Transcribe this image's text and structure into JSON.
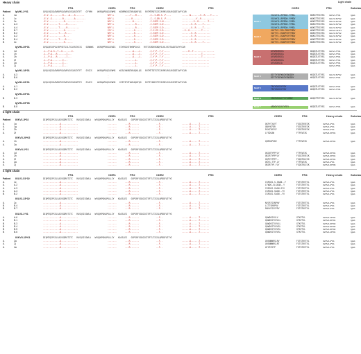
{
  "sections": [
    {
      "title": "Heavy chain",
      "light_header": "Light chain",
      "columns": [
        "FR1",
        "CDR1",
        "FR2",
        "CDR2",
        "FR3",
        "CDR3",
        "FR4",
        "Subclass"
      ],
      "patient_label": "Patient",
      "groups": [
        {
          "gene": "IgVH1-2*01",
          "germline": "QVQLVQSGAEVKKPGASVKVSCKASGYTFT   GYYMH    WVRQAPGQGLEWMG   WINPNSGGTNYAQKFQG   RVTMTRDTSISTAYMELSRLRSDDTAVYYCAR",
          "rows": [
            {
              "p": "A",
              "c": "1a",
              "fr1": "-E-V--S--------R----A---S-------",
              "cdr1": "NFY-L",
              "fr2": "----T---M----",
              "cdr2": "-I--S-DR-S--P----",
              "fr3": "------N-------V--R----T-----",
              "light": "IGKV1-5*01",
              "sub": "IgG1"
            },
            {
              "p": "A",
              "c": "1c",
              "fr1": "-E-V--S--------R--------A--------",
              "cdr1": "NFY-L",
              "fr2": "-----R-------",
              "cdr2": "-I--S-DR-S--P----",
              "fr3": "-----------V--R----------",
              "light": "IGLV1-51*02",
              "sub": "IgG1"
            },
            {
              "p": "A",
              "c": "3c",
              "fr1": "-E-V------------R--------------",
              "cdr1": "NFY-L",
              "fr2": "------R------",
              "cdr2": "-I-SSEP-S-N-----",
              "fr3": "---------V--R-------T----",
              "light": "IGLV1-51*02",
              "sub": "IgG1"
            },
            {
              "p": "A",
              "c": "A.3",
              "fr1": "-E-V--------T-----R-------",
              "cdr1": "NFY-L",
              "fr2": "--------R----",
              "cdr2": "-I-SSEP-S-D-----",
              "fr3": "-------V--R-----T-----",
              "light": "IGLV1-51*02",
              "sub": "IgG1"
            },
            {
              "p": "A",
              "c": "A.4",
              "fr1": "-E-V--------T-----R---------",
              "cdr1": "NFY-L",
              "fr2": "--------R----",
              "cdr2": "-I-SSEP-S-D-----",
              "fr3": "-------V--R-----T-----",
              "light": "IGLV1-51*02",
              "sub": "IgG1"
            },
            {
              "p": "B",
              "c": "B.7",
              "fr1": "-E-V------------R--------",
              "cdr1": "SFY-L",
              "fr2": "-------R-----",
              "cdr2": "-I-S-EP-S-D-----",
              "fr3": "--V--R---------T-----",
              "light": "IGKV3-11*01",
              "sub": "IgG1"
            },
            {
              "p": "B",
              "c": "B.2",
              "fr1": "-E-V--------T----R----",
              "cdr1": "NFY-L",
              "fr2": "-------R-----",
              "cdr2": "-I-SSEP-S-D-----",
              "fr3": "-------V--R-----------",
              "light": "IGLV1-51*02",
              "sub": "IgG1"
            },
            {
              "p": "A",
              "c": "A.2",
              "fr1": "-E-V------------R---",
              "cdr1": "NFY-L",
              "fr2": "-------R-----",
              "cdr2": "-I-SSEP-S-D-----",
              "fr3": "-------V--R-----------",
              "light": "IGLV1-51*02",
              "sub": "IgG1"
            },
            {
              "p": "B",
              "c": "B.4",
              "fr1": "-E-V--------T----R----",
              "cdr1": "NFY-L",
              "fr2": "-------R-----",
              "cdr2": "-I-SSEP-S-D-----",
              "fr3": "-------V--R-----------",
              "light": "IGLV1-51*02",
              "sub": "IgG1"
            },
            {
              "p": "B",
              "c": "2c",
              "fr1": "-E-V------------R------",
              "cdr1": "NFY-L",
              "fr2": "-------R-----",
              "cdr2": "-I-SSEP-S-D-----",
              "fr3": "-------V--R-----T-----",
              "light": "IGLV1-51*02",
              "sub": "IgG1"
            }
          ],
          "motifs": [
            {
              "label": "Motif 1",
              "color": "#8ec8e0",
              "cdr3": [
                "VGLWYILLRPEDW-YYMDL",
                "VGLWYILLRPEDW-YYMDV",
                "VGLWYILLRPEDW-YYMDL",
                "VGLWYILLRPEDW-YYMDL",
                "VGLWYILLRPEDW-YYMDL"
              ],
              "fr4": [
                "WGKGTTVIVSS",
                "WGKGTTVIVSS",
                "WGKGTTVIVSS",
                "WGKGTTVIVSS",
                "WGKGTTVIVSS"
              ]
            },
            {
              "label": "Motif 2",
              "color": "#f0a860",
              "cdr3": [
                "VAFTYS-CSD-PRRFTMDV",
                "VAFTYS-CSDDPCRFTMDV",
                "VAFTYS-CSDDPCRFTMDV",
                "VAFTYS-CSDDPCRFTMDV",
                "VAFTYS-CSDDPCRFTMDV"
              ],
              "fr4": [
                "WGKGTTVIVSS",
                "WGKGTTVIVSS",
                "WGKGTTVIVSS",
                "WGKGTTVIVSS",
                "WGKGTTVIVSS"
              ]
            }
          ]
        },
        {
          "gene": "IgVH4-39*01",
          "germline": "QVQLQESGPGLVKPSETLSLTCAVSGYSIS   SGNWWS   WIRQPPGKGLEWIG   EIYHSGSTNYNPSLKS   RVTISVDKSKNQFSLKLSSVTAADTAVYYCAR",
          "rows": [
            {
              "p": "A",
              "c": "1d",
              "fr1": "-L--P-A-S--T--G-------I-",
              "cdr1": "",
              "fr2": "------A----L-",
              "cdr2": "-I-Y-P--T-Y-----",
              "fr3": "-----R--T----------------",
              "light": "IGKV1-5*01",
              "sub": "IgG1"
            },
            {
              "p": "A",
              "c": "1h",
              "fr1": "-L--P-A---R-------I---",
              "cdr1": "",
              "fr2": "------A----L-",
              "cdr2": "-I-Y-P--T-Y-----",
              "fr3": "---------------T----------",
              "light": "IGKV1-5*01",
              "sub": "IgG1"
            },
            {
              "p": "A",
              "c": "2h",
              "fr1": "-L--P-A---R-------I---",
              "cdr1": "",
              "fr2": "------A----L-",
              "cdr2": "-I-Y-P--T-Y-----",
              "fr3": "---------------T----------",
              "light": "IGKV1-5*01",
              "sub": "IgG1"
            },
            {
              "p": "A",
              "c": "2f",
              "fr1": "-L--P-A--------I---",
              "cdr1": "",
              "fr2": "--------L-",
              "cdr2": "-I-Y-P--T-Y-----",
              "fr3": "---------------------",
              "light": "IGKV1-5*01",
              "sub": "IgG1"
            },
            {
              "p": "A",
              "c": "2a",
              "fr1": "-L--P-A--------I---",
              "cdr1": "",
              "fr2": "--------L-",
              "cdr2": "-I-Y-P--T-Y-----",
              "fr3": "---------------------",
              "light": "IGKV1-5*01",
              "sub": "IgG1"
            },
            {
              "p": "A",
              "c": "2j",
              "fr1": "-L--P-A--------I---",
              "cdr1": "",
              "fr2": "--------L-",
              "cdr2": "-I-Y-P--T-Y-----",
              "fr3": "---------------------",
              "light": "IGKV1-5*01",
              "sub": "IgG1"
            }
          ],
          "motifs": [
            {
              "label": "Motif 3",
              "color": "#c87070",
              "cdr3": [
                "AYARSGRGCA",
                "AYARSGRGCA",
                "AYARSGRGCA",
                "AYARSGRGCA",
                "AYASGRGCA"
              ],
              "fr4": [
                "WGQGTLVTVSS",
                "WGQGTLVTVSS",
                "WGQGTLVTVSS",
                "WGQGTLVTVSS",
                "WGQGTLVTVSS"
              ]
            }
          ]
        },
        {
          "gene": "IgVH1-18*01",
          "germline": "QVQLVQSGAEVKKPGASVKVSCKASGYTFT   SYGIS    WVRQAPGQGLEWMG   WISAYNGNTNYAQKLQG   RVTMTTDTSTSTAYMELRSLRSDDTAVYYCAR",
          "rows": [
            {
              "p": "A",
              "c": "A.3",
              "fr1": "",
              "cdr1": "-",
              "fr2": "",
              "cdr2": "",
              "fr3": "",
              "light": "IGLV1-51*02",
              "sub": "IgG1"
            },
            {
              "p": "B",
              "c": "B.6",
              "fr1": "",
              "cdr1": "-",
              "fr2": "",
              "cdr2": "",
              "fr3": "",
              "light": "IGKV1-5*01",
              "sub": "IgG1"
            }
          ],
          "motifs": [
            {
              "label": "Motif 4",
              "color": "#b0b0b0",
              "cdr3": [
                "DIFTYYDFWSGYSNGDDY",
                "DIFTYYDFWSGYSNGDDY"
              ],
              "fr4": [
                "WGQGTLVTVSS",
                "WGQGTLVTVSS"
              ]
            }
          ]
        },
        {
          "gene": "IgVH1-69*01",
          "germline": "QVQLVQSGAEVKKPGSSVKVSCKASGGTFS   SYAIS    WVRQAPGQGLEWMG   GIIPIFGTANYAQKFQG   RVTITADESTSTAYMELSSLRSEDTAVYYCAR",
          "rows": [
            {
              "p": "A",
              "c": "A.1",
              "fr1": "",
              "cdr1": "",
              "fr2": "",
              "cdr2": "",
              "fr3": "",
              "light": "IGKV1-5*01",
              "sub": "IgG1"
            },
            {
              "p": "B",
              "c": "B.2",
              "fr1": "",
              "cdr1": "",
              "fr2": "",
              "cdr2": "",
              "fr3": "",
              "light": "IGKV1-5*01",
              "sub": "IgG1"
            }
          ],
          "motifs": [
            {
              "label": "Motif 5",
              "color": "#5878c8",
              "cdr3": [
                "TRYYGGSSYFDY",
                "TRYYGGSSYFDY"
              ],
              "fr4": [
                "WGQGTLVTVSS",
                "WGQGTLVTVSS"
              ]
            }
          ]
        },
        {
          "gene": "IgVH1-69*01",
          "germline": "",
          "rows": [
            {
              "p": "B",
              "c": "B.3",
              "fr1": "",
              "cdr1": "",
              "fr2": "",
              "cdr2": "",
              "fr3": "",
              "light": "IGLV1-51*02",
              "sub": "IgG1"
            }
          ],
          "motifs": [
            {
              "label": "Motif 6",
              "color": "#5aa85a",
              "cdr3": [
                "VRERYRGAYYYYYGMDV"
              ],
              "fr4": [
                "WGQGTTVTVSS"
              ]
            }
          ]
        },
        {
          "gene": "IgVH1-69*06",
          "germline": "",
          "rows": [
            {
              "p": "B",
              "c": "B.8",
              "fr1": "",
              "cdr1": "",
              "fr2": "",
              "cdr2": "",
              "fr3": "",
              "light": "IGKV1-5*01",
              "sub": "IgG1"
            }
          ],
          "motifs": [
            {
              "label": "Motif 7",
              "color": "#98d070",
              "cdr3": [
                "ARDGYYGSSYYFDY"
              ],
              "fr4": [
                "WGQGTLVTVSS"
              ]
            }
          ]
        }
      ]
    },
    {
      "title": "κ light chain",
      "columns": [
        "FR1",
        "CDR1",
        "FR2",
        "CDR2",
        "FR3",
        "CDR3",
        "FR4",
        "Heavy chain",
        "Subclass"
      ],
      "groups": [
        {
          "gene": "IGKV1-5*02",
          "rows": [
            {
              "p": "A",
              "c": "1a"
            },
            {
              "p": "A",
              "c": "1g"
            },
            {
              "p": "A",
              "c": "2h"
            },
            {
              "p": "A",
              "c": "2f"
            }
          ],
          "cdr3": [
            "QKFYCYAYT",
            "QNYHCFDR",
            "RSHCYRFSY",
            "LFSDSAW"
          ],
          "fr4": [
            "FGGGTKVEIK",
            "FGGGTKVEIK",
            "FGGGTKVEIK",
            "FTFKVEIK"
          ],
          "heavy": [
            "IGHV1-2*01",
            "IGHV1-2*01",
            "IGHV1-2*01",
            "IGHV4-39*01"
          ],
          "sub": [
            "IgG1",
            "IgG1",
            "IgG1",
            "IgG1"
          ]
        },
        {
          "gene": "IGKV3-20*02",
          "rows": [
            {
              "p": "A",
              "c": "1h"
            },
            {
              "p": "A",
              "c": "2a"
            }
          ],
          "cdr3": [
            "QHRGSPGKE",
            ""
          ],
          "fr4": [
            "FTFKVEIK",
            ""
          ],
          "heavy": [
            "IGHV4-39*01",
            ""
          ],
          "sub": [
            "IgG1",
            ""
          ]
        },
        {
          "gene": "IGKV4-1*01",
          "rows": [
            {
              "p": "A",
              "c": "1d"
            },
            {
              "p": "A",
              "c": "2h"
            },
            {
              "p": "A",
              "c": "2f"
            },
            {
              "p": "A",
              "c": "2a"
            },
            {
              "p": "A",
              "c": "2j"
            }
          ],
          "cdr3": [
            "QKCNTYPPYLY",
            "QKCRTYPPYLY",
            "HQPYSTPPY--",
            "QKYG-TTP-LY",
            "QKGRTYP-YLY"
          ],
          "fr4": [
            "FTFKVEIK",
            "FGGGTKVEIK",
            "FGQGTKLEIK",
            "FTFKVEIK",
            "FGQGTKLEIK"
          ],
          "heavy": [
            "IGHV4-39*01",
            "IGHV4-39*01",
            "IGHV4-39*01",
            "IGHV1-2*01",
            "IGHV1-69*06"
          ],
          "sub": [
            "IgG1",
            "IgG1",
            "IgG1",
            "IgG1",
            "IgG1"
          ]
        }
      ]
    },
    {
      "title": "λ light chain",
      "columns": [
        "FR1",
        "CDR1",
        "FR2",
        "CDR2",
        "FR3",
        "CDR3",
        "FR4",
        "Heavy chain",
        "Subclass"
      ],
      "groups": [
        {
          "gene": "IGLV1-51*02",
          "rows": [
            {
              "p": "A",
              "c": "1c"
            },
            {
              "p": "A",
              "c": "A.2"
            },
            {
              "p": "A",
              "c": "A.3"
            },
            {
              "p": "A",
              "c": "A.4"
            },
            {
              "p": "B",
              "c": "B.2"
            }
          ],
          "cdr3": [
            "ISRGSS-S-SAGN--Y",
            "LTWDG-SLSAGN--Y",
            "ISRGSS-SAGN-SYV",
            "ISRGSS-SAGN--YV",
            "ISRGSS-SAGN--YV"
          ],
          "fr4": [
            "FGTGTKVTVL",
            "FGTGTKVTVL",
            "FGTGTKVTVL",
            "FGTGTKVTVL",
            "FGTGTKVTVL"
          ],
          "heavy": [
            "IGHV1-2*01",
            "IGHV1-2*01",
            "IGHV1-2*01",
            "IGHV1-2*01",
            "IGHV1-2*01"
          ],
          "sub": [
            "IgG1",
            "IgG1",
            "IgG1",
            "IgG1",
            "IgG1"
          ]
        },
        {
          "gene": "IGLV2-23*02",
          "rows": [
            {
              "p": "A",
              "c": "2c"
            },
            {
              "p": "B",
              "c": "B.4"
            },
            {
              "p": "B",
              "c": "B.7"
            }
          ],
          "cdr3": [
            "NVCRTSSNPHV",
            "LCTTSRRPRV",
            "RNYVCSSYPPV"
          ],
          "fr4": [
            "FGTGTKVTVL",
            "FGTGTKVTVL",
            "FGTGTKVTVL"
          ],
          "heavy": [
            "IGHV1-2*01",
            "IGHV1-2*01",
            "IGHV1-2*01"
          ],
          "sub": [
            "IgG1",
            "IgG1",
            "IgG1"
          ]
        },
        {
          "gene": "IGLV3-1*01",
          "rows": [
            {
              "p": "A",
              "c": "A.6"
            },
            {
              "p": "B",
              "c": "B.1"
            },
            {
              "p": "B",
              "c": "B.3"
            },
            {
              "p": "B",
              "c": "B.4"
            },
            {
              "p": "B",
              "c": "B.5"
            },
            {
              "p": "B",
              "c": "B.6"
            }
          ],
          "cdr3": [
            "QAWDSSVVLV",
            "QAWDSSTVVVLL",
            "QAWDSSTVVVLL",
            "QAWDSSTVVVSL",
            "QAWDSSTVVVSL",
            "QAWDSSTVVVSL"
          ],
          "fr4": [
            "GTKVTVL",
            "GTKVTVL",
            "GTKVTVL",
            "GTKVTVL",
            "GTKVTVL",
            "GTKVTVL"
          ],
          "heavy": [
            "IGHV1-18*01",
            "IGHV1-69*01",
            "IGHV1-69*02",
            "IGHV1-69*02",
            "IGHV1-69*02",
            "IGHV1-18*01"
          ],
          "sub": [
            "IgG1",
            "IgG1",
            "IgG1",
            "IgG1",
            "IgG1",
            "IgG1"
          ]
        },
        {
          "gene": "IGKV3-15*01",
          "rows": [
            {
              "p": "A",
              "c": "2a"
            },
            {
              "p": "A",
              "c": "2j"
            },
            {
              "p": "A",
              "c": "4a"
            }
          ],
          "cdr3": [
            "ARSNWNRSLRV",
            "ARSNWNRSLRT",
            "ATCRTGTP"
          ],
          "fr4": [
            "FGTGTKVTVL",
            "FGTGTKVTVL",
            "FGTGTKVTVL"
          ],
          "heavy": [
            "IGHV1-2*01",
            "IGHV1-2*01",
            "IGHV1-2*01"
          ],
          "sub": [
            "IgG1",
            "IgG1",
            "IgG1"
          ]
        }
      ]
    }
  ]
}
